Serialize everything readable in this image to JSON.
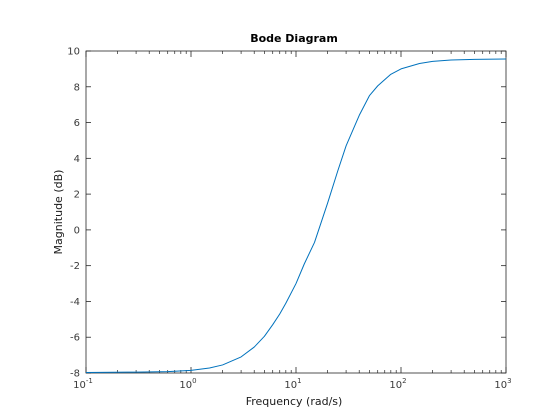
{
  "chart_data": {
    "type": "line",
    "title": "Bode Diagram",
    "xlabel": "Frequency  (rad/s)",
    "ylabel": "Magnitude (dB)",
    "xscale": "log",
    "xlim": [
      0.1,
      1000
    ],
    "ylim": [
      -8,
      10
    ],
    "grid": false,
    "x_ticks": [
      {
        "base": "10",
        "exp": "-1"
      },
      {
        "base": "10",
        "exp": "0"
      },
      {
        "base": "10",
        "exp": "1"
      },
      {
        "base": "10",
        "exp": "2"
      },
      {
        "base": "10",
        "exp": "3"
      }
    ],
    "y_ticks": [
      "-8",
      "-6",
      "-4",
      "-2",
      "0",
      "2",
      "4",
      "6",
      "8",
      "10"
    ],
    "series": [
      {
        "color": "#0072bd",
        "x": [
          0.1,
          0.3,
          0.6,
          1,
          1.5,
          2,
          3,
          4,
          5,
          6,
          7,
          8,
          10,
          12,
          15,
          20,
          25,
          30,
          40,
          50,
          60,
          80,
          100,
          150,
          200,
          300,
          500,
          1000
        ],
        "y": [
          -7.97,
          -7.95,
          -7.92,
          -7.85,
          -7.72,
          -7.55,
          -7.1,
          -6.55,
          -5.95,
          -5.3,
          -4.7,
          -4.1,
          -3.0,
          -1.9,
          -0.7,
          1.5,
          3.3,
          4.7,
          6.4,
          7.5,
          8.05,
          8.7,
          9.0,
          9.3,
          9.42,
          9.5,
          9.53,
          9.55
        ]
      }
    ]
  }
}
